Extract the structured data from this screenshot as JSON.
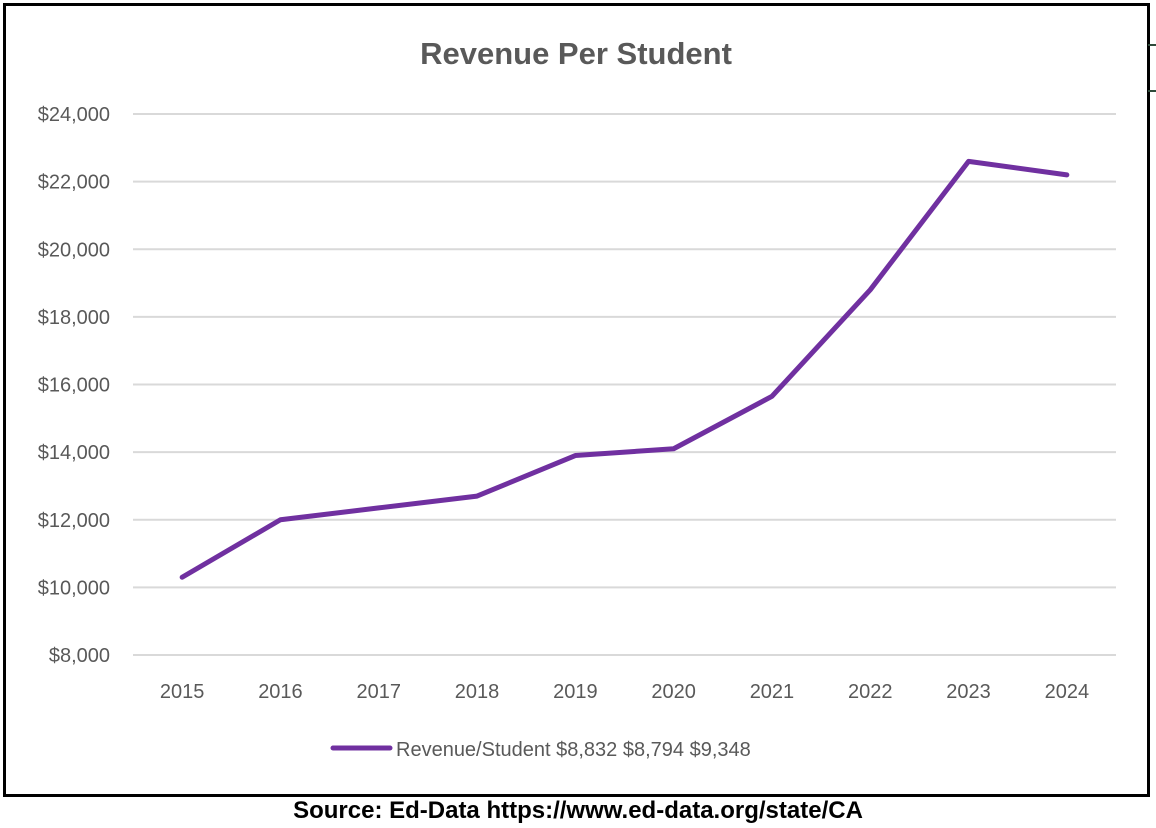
{
  "chart_data": {
    "type": "line",
    "title": "Revenue Per Student",
    "xlabel": "",
    "ylabel": "",
    "categories": [
      "2015",
      "2016",
      "2017",
      "2018",
      "2019",
      "2020",
      "2021",
      "2022",
      "2023",
      "2024"
    ],
    "series": [
      {
        "name": "Revenue/Student $8,832 $8,794 $9,348",
        "color": "#7030a0",
        "values": [
          10300,
          12000,
          12350,
          12700,
          13900,
          14100,
          15650,
          18800,
          22600,
          22200
        ]
      }
    ],
    "ylim": [
      8000,
      24000
    ],
    "yticks": [
      "$8,000",
      "$10,000",
      "$12,000",
      "$14,000",
      "$16,000",
      "$18,000",
      "$20,000",
      "$22,000",
      "$24,000"
    ],
    "grid": true,
    "legend": "bottom"
  },
  "source": "Source:  Ed-Data https://www.ed-data.org/state/CA"
}
